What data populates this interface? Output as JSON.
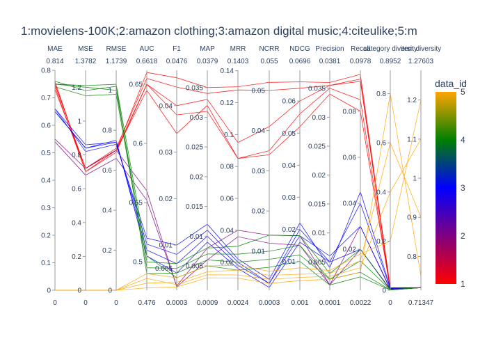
{
  "chart_data": {
    "type": "parallel_coordinates",
    "title": "1:movielens-100K;2:amazon clothing;3:amazon digital music;4:citeulike;5:m",
    "colorbar": {
      "title": "data_id",
      "ticks": [
        "1",
        "2",
        "3",
        "4",
        "5"
      ],
      "colors": [
        "#ff0000",
        "#800080",
        "#0000ff",
        "#008000",
        "#ffa500"
      ]
    },
    "dimensions": [
      {
        "name": "MAE",
        "value": "0.814",
        "bottom": "0",
        "range": [
          0,
          0.8
        ],
        "ticks": [
          "0",
          "0.1",
          "0.2",
          "0.3",
          "0.4",
          "0.5",
          "0.6",
          "0.7",
          "0.8"
        ]
      },
      {
        "name": "MSE",
        "value": "1.3782",
        "bottom": "0",
        "range": [
          0,
          1.3
        ],
        "ticks": [
          "0",
          "0.2",
          "0.4",
          "0.6",
          "0.8",
          "1",
          "1.2"
        ]
      },
      {
        "name": "RMSE",
        "value": "1.1739",
        "bottom": "0",
        "range": [
          0,
          1.1
        ],
        "ticks": [
          "0",
          "0.2",
          "0.4",
          "0.6",
          "0.8",
          "1"
        ]
      },
      {
        "name": "AUC",
        "value": "0.6618",
        "bottom": "0.476",
        "range": [
          0.476,
          0.6618
        ],
        "ticks": [
          "0.5",
          "0.55",
          "0.6",
          "0.65"
        ]
      },
      {
        "name": "F1",
        "value": "0.0476",
        "bottom": "0.0003",
        "range": [
          0.0003,
          0.0476
        ],
        "ticks": [
          "0.005",
          "0.01",
          "0.02",
          "0.03",
          "0.04"
        ]
      },
      {
        "name": "MAP",
        "value": "0.0379",
        "bottom": "0.0009",
        "range": [
          0.0009,
          0.0379
        ],
        "ticks": [
          "0.005",
          "0.01",
          "0.015",
          "0.02",
          "0.025",
          "0.03",
          "0.035"
        ]
      },
      {
        "name": "MRR",
        "value": "0.1403",
        "bottom": "0.0024",
        "range": [
          0.0024,
          0.1403
        ],
        "ticks": [
          "0.02",
          "0.04",
          "0.06",
          "0.08",
          "0.1",
          "0.12",
          "0.14"
        ]
      },
      {
        "name": "NCRR",
        "value": "0.055",
        "bottom": "0.0003",
        "range": [
          0.0003,
          0.055
        ],
        "ticks": [
          "0.01",
          "0.02",
          "0.03",
          "0.04",
          "0.05"
        ]
      },
      {
        "name": "NDCG",
        "value": "0.0696",
        "bottom": "0.001",
        "range": [
          0.001,
          0.0696
        ],
        "ticks": [
          "0.01",
          "0.02",
          "0.03",
          "0.04",
          "0.05",
          "0.06"
        ]
      },
      {
        "name": "Precision",
        "value": "0.0381",
        "bottom": "0.0001",
        "range": [
          0.0001,
          0.0381
        ],
        "ticks": [
          "0.005",
          "0.01",
          "0.015",
          "0.02",
          "0.025",
          "0.03",
          "0.035"
        ]
      },
      {
        "name": "Recall",
        "value": "0.0978",
        "bottom": "0.0022",
        "range": [
          0.0022,
          0.0978
        ],
        "ticks": [
          "0.02",
          "0.04",
          "0.06",
          "0.08"
        ]
      },
      {
        "name": "category diversity",
        "value": "0.8952",
        "bottom": "0",
        "range": [
          0,
          0.8952
        ],
        "ticks": [
          "0",
          "0.2",
          "0.4",
          "0.6",
          "0.8"
        ]
      },
      {
        "name": "item diversity",
        "value": "1.27603",
        "bottom": "0.71347",
        "range": [
          0.71347,
          1.27603
        ],
        "ticks": [
          "0.8",
          "0.9",
          "1",
          "1.1",
          "1.2"
        ]
      }
    ],
    "lines": [
      {
        "data_id": 1,
        "values": [
          0.76,
          0.7,
          0.7,
          0.66,
          0.046,
          0.035,
          0.13,
          0.052,
          0.066,
          0.036,
          0.096,
          0.01,
          0.72
        ]
      },
      {
        "data_id": 1,
        "values": [
          0.75,
          0.72,
          0.71,
          0.655,
          0.044,
          0.034,
          0.128,
          0.05,
          0.064,
          0.0355,
          0.094,
          0.008,
          0.72
        ]
      },
      {
        "data_id": 1,
        "values": [
          0.74,
          0.7,
          0.69,
          0.65,
          0.04,
          0.033,
          0.095,
          0.041,
          0.06,
          0.0355,
          0.093,
          0.006,
          0.72
        ]
      },
      {
        "data_id": 1,
        "values": [
          0.73,
          0.72,
          0.7,
          0.645,
          0.034,
          0.032,
          0.085,
          0.035,
          0.056,
          0.035,
          0.085,
          0.004,
          0.72
        ]
      },
      {
        "data_id": 1,
        "values": [
          0.75,
          0.72,
          0.7,
          0.65,
          0.038,
          0.031,
          0.085,
          0.034,
          0.052,
          0.034,
          0.08,
          0.003,
          0.72
        ]
      },
      {
        "data_id": 2,
        "values": [
          0.55,
          0.72,
          0.7,
          0.56,
          0.001,
          0.006,
          0.036,
          0.012,
          0.015,
          0.001,
          0.02,
          0.001,
          0.72
        ]
      },
      {
        "data_id": 2,
        "values": [
          0.54,
          0.68,
          0.66,
          0.552,
          0.0012,
          0.008,
          0.04,
          0.014,
          0.018,
          0.001,
          0.03,
          0.002,
          0.72
        ]
      },
      {
        "data_id": 3,
        "values": [
          0.66,
          0.82,
          0.73,
          0.52,
          0.01,
          0.012,
          0.022,
          0.003,
          0.022,
          0.004,
          0.045,
          0.01,
          0.72
        ]
      },
      {
        "data_id": 3,
        "values": [
          0.65,
          0.84,
          0.74,
          0.515,
          0.008,
          0.011,
          0.02,
          0.002,
          0.02,
          0.005,
          0.04,
          0.008,
          0.72
        ]
      },
      {
        "data_id": 3,
        "values": [
          0.66,
          0.86,
          0.74,
          0.51,
          0.006,
          0.01,
          0.018,
          0.002,
          0.018,
          0.006,
          0.03,
          0.006,
          0.72
        ]
      },
      {
        "data_id": 3,
        "values": [
          0.65,
          0.84,
          0.75,
          0.505,
          0.004,
          0.009,
          0.016,
          0.001,
          0.016,
          0.005,
          0.02,
          0.004,
          0.72
        ]
      },
      {
        "data_id": 4,
        "values": [
          0.75,
          1.2,
          1.0,
          0.5,
          0.006,
          0.008,
          0.03,
          0.014,
          0.018,
          0.003,
          0.02,
          0.003,
          0.72
        ]
      },
      {
        "data_id": 4,
        "values": [
          0.74,
          1.15,
          0.98,
          0.495,
          0.005,
          0.007,
          0.025,
          0.01,
          0.015,
          0.002,
          0.015,
          0.002,
          0.72
        ]
      },
      {
        "data_id": 4,
        "values": [
          0.76,
          1.18,
          1.02,
          0.49,
          0.004,
          0.006,
          0.02,
          0.008,
          0.012,
          0.002,
          0.01,
          0.001,
          0.72
        ]
      },
      {
        "data_id": 4,
        "values": [
          0.75,
          1.21,
          1.03,
          0.505,
          0.003,
          0.005,
          0.015,
          0.006,
          0.01,
          0.001,
          0.008,
          0.001,
          0.72
        ]
      },
      {
        "data_id": 5,
        "values": [
          0.0,
          0.0,
          0.0,
          0.478,
          0.001,
          0.003,
          0.01,
          0.002,
          0.004,
          0.002,
          0.01,
          0.8,
          0.75
        ]
      },
      {
        "data_id": 5,
        "values": [
          0.0,
          0.0,
          0.0,
          0.482,
          0.002,
          0.004,
          0.015,
          0.004,
          0.006,
          0.003,
          0.015,
          0.6,
          0.9
        ]
      },
      {
        "data_id": 5,
        "values": [
          0.0,
          0.0,
          0.0,
          0.486,
          0.0015,
          0.0035,
          0.012,
          0.003,
          0.005,
          0.0025,
          0.012,
          0.4,
          1.1
        ]
      },
      {
        "data_id": 5,
        "values": [
          0.0,
          0.0,
          0.0,
          0.49,
          0.003,
          0.005,
          0.018,
          0.005,
          0.008,
          0.0035,
          0.018,
          0.2,
          1.2
        ]
      }
    ]
  }
}
